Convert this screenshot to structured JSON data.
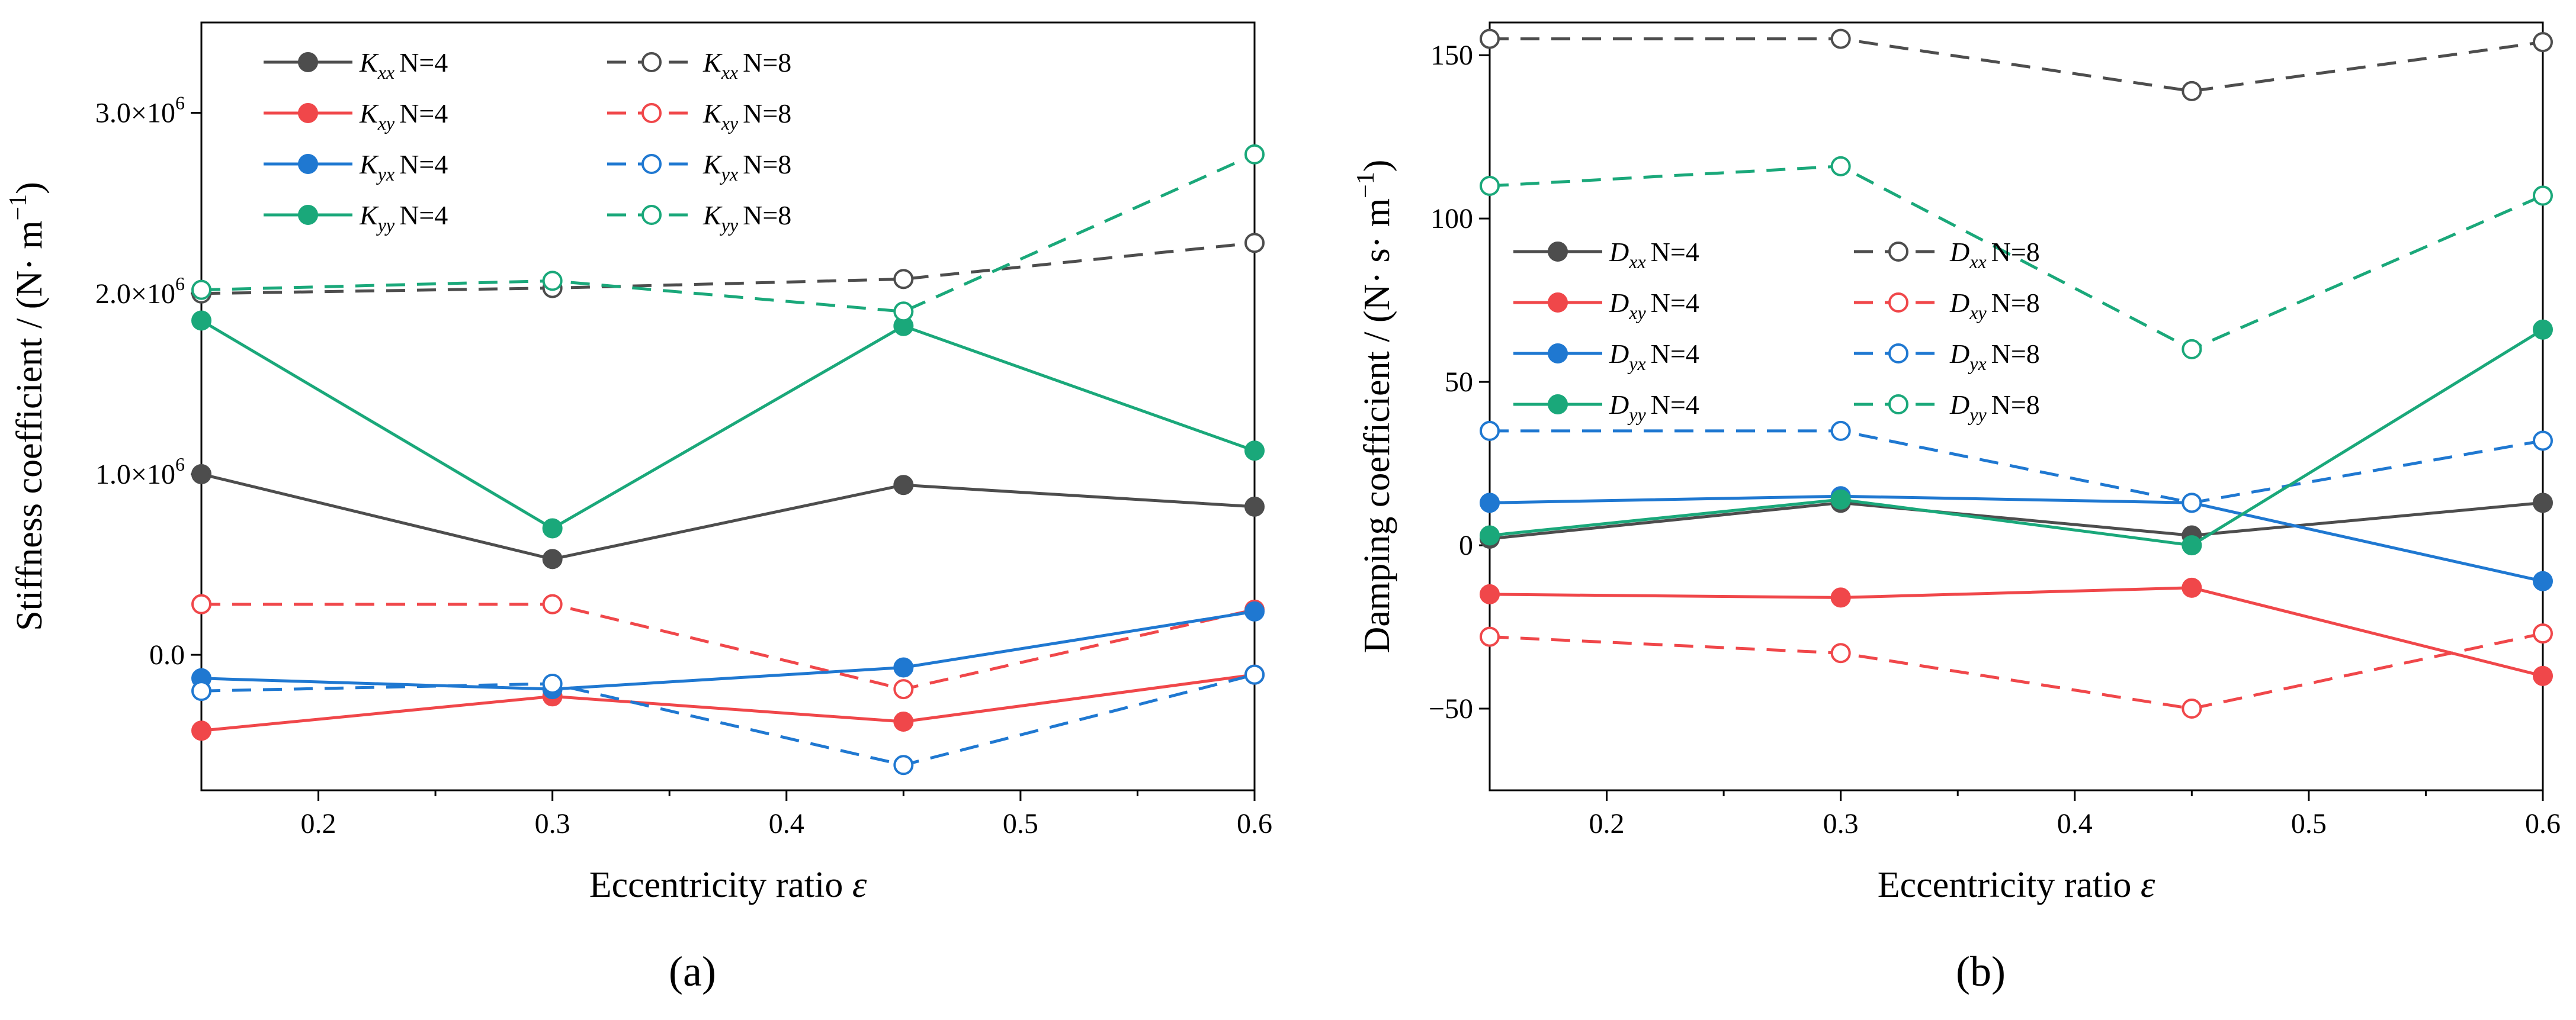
{
  "chart_data": [
    {
      "type": "line",
      "panel_label": "(a)",
      "xlabel": "Eccentricity ratio",
      "xlabel_symbol": "ε",
      "ylabel": "Stiffness coefficient / (N· m",
      "ylabel_unit_sup": "−1",
      "ylabel_close": ")",
      "xlim": [
        0.15,
        0.6
      ],
      "ylim": [
        -750000,
        3500000
      ],
      "x_ticks": [
        0.2,
        0.3,
        0.4,
        0.5,
        0.6
      ],
      "x_tick_labels": [
        "0.2",
        "0.3",
        "0.4",
        "0.5",
        "0.6"
      ],
      "y_ticks": [
        0,
        1000000,
        2000000,
        3000000
      ],
      "y_tick_labels": [
        {
          "base": "0.0",
          "sup": ""
        },
        {
          "base": "1.0×10",
          "sup": "6"
        },
        {
          "base": "2.0×10",
          "sup": "6"
        },
        {
          "base": "3.0×10",
          "sup": "6"
        }
      ],
      "legend_position": "top-left",
      "x": [
        0.15,
        0.3,
        0.45,
        0.6
      ],
      "series": [
        {
          "sym": "K",
          "sub": "xx",
          "n_label": "N=4",
          "color": "#4d4d4d",
          "dashed": false,
          "filled": true,
          "values": [
            1000000,
            530000,
            940000,
            820000
          ]
        },
        {
          "sym": "K",
          "sub": "xx",
          "n_label": "N=8",
          "color": "#4d4d4d",
          "dashed": true,
          "filled": false,
          "values": [
            2000000,
            2030000,
            2080000,
            2280000
          ]
        },
        {
          "sym": "K",
          "sub": "xy",
          "n_label": "N=4",
          "color": "#f0474a",
          "dashed": false,
          "filled": true,
          "values": [
            -420000,
            -230000,
            -370000,
            -110000
          ]
        },
        {
          "sym": "K",
          "sub": "xy",
          "n_label": "N=8",
          "color": "#f0474a",
          "dashed": true,
          "filled": false,
          "values": [
            280000,
            280000,
            -190000,
            250000
          ]
        },
        {
          "sym": "K",
          "sub": "yx",
          "n_label": "N=4",
          "color": "#1f78d1",
          "dashed": false,
          "filled": true,
          "values": [
            -130000,
            -190000,
            -70000,
            240000
          ]
        },
        {
          "sym": "K",
          "sub": "yx",
          "n_label": "N=8",
          "color": "#1f78d1",
          "dashed": true,
          "filled": false,
          "values": [
            -200000,
            -160000,
            -610000,
            -110000
          ]
        },
        {
          "sym": "K",
          "sub": "yy",
          "n_label": "N=4",
          "color": "#1aa87a",
          "dashed": false,
          "filled": true,
          "values": [
            1850000,
            700000,
            1820000,
            1130000
          ]
        },
        {
          "sym": "K",
          "sub": "yy",
          "n_label": "N=8",
          "color": "#1aa87a",
          "dashed": true,
          "filled": false,
          "values": [
            2020000,
            2070000,
            1900000,
            2770000
          ]
        }
      ]
    },
    {
      "type": "line",
      "panel_label": "(b)",
      "xlabel": "Eccentricity ratio",
      "xlabel_symbol": "ε",
      "ylabel": "Damping coefficient / (N· s· m",
      "ylabel_unit_sup": "−1",
      "ylabel_close": ")",
      "xlim": [
        0.15,
        0.6
      ],
      "ylim": [
        -75,
        160
      ],
      "x_ticks": [
        0.2,
        0.3,
        0.4,
        0.5,
        0.6
      ],
      "x_tick_labels": [
        "0.2",
        "0.3",
        "0.4",
        "0.5",
        "0.6"
      ],
      "y_ticks": [
        -50,
        0,
        50,
        100,
        150
      ],
      "y_tick_labels": [
        {
          "base": "−50",
          "sup": ""
        },
        {
          "base": "0",
          "sup": ""
        },
        {
          "base": "50",
          "sup": ""
        },
        {
          "base": "100",
          "sup": ""
        },
        {
          "base": "150",
          "sup": ""
        }
      ],
      "legend_position": "center-left",
      "x": [
        0.15,
        0.3,
        0.45,
        0.6
      ],
      "series": [
        {
          "sym": "D",
          "sub": "xx",
          "n_label": "N=4",
          "color": "#4d4d4d",
          "dashed": false,
          "filled": true,
          "values": [
            2,
            13,
            3,
            13
          ]
        },
        {
          "sym": "D",
          "sub": "xx",
          "n_label": "N=8",
          "color": "#4d4d4d",
          "dashed": true,
          "filled": false,
          "values": [
            155,
            155,
            139,
            154
          ]
        },
        {
          "sym": "D",
          "sub": "xy",
          "n_label": "N=4",
          "color": "#f0474a",
          "dashed": false,
          "filled": true,
          "values": [
            -15,
            -16,
            -13,
            -40
          ]
        },
        {
          "sym": "D",
          "sub": "xy",
          "n_label": "N=8",
          "color": "#f0474a",
          "dashed": true,
          "filled": false,
          "values": [
            -28,
            -33,
            -50,
            -27
          ]
        },
        {
          "sym": "D",
          "sub": "yx",
          "n_label": "N=4",
          "color": "#1f78d1",
          "dashed": false,
          "filled": true,
          "values": [
            13,
            15,
            13,
            -11
          ]
        },
        {
          "sym": "D",
          "sub": "yx",
          "n_label": "N=8",
          "color": "#1f78d1",
          "dashed": true,
          "filled": false,
          "values": [
            35,
            35,
            13,
            32
          ]
        },
        {
          "sym": "D",
          "sub": "yy",
          "n_label": "N=4",
          "color": "#1aa87a",
          "dashed": false,
          "filled": true,
          "values": [
            3,
            14,
            0,
            66
          ]
        },
        {
          "sym": "D",
          "sub": "yy",
          "n_label": "N=8",
          "color": "#1aa87a",
          "dashed": true,
          "filled": false,
          "values": [
            110,
            116,
            60,
            107
          ]
        }
      ]
    }
  ]
}
